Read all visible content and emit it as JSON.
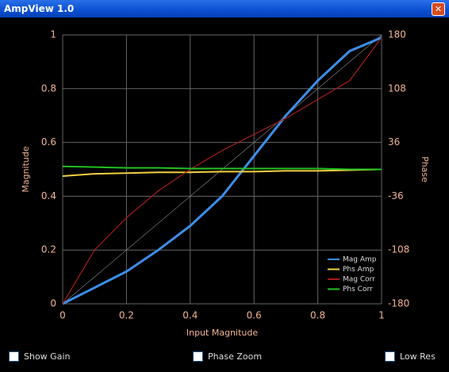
{
  "window": {
    "title": "AmpView 1.0"
  },
  "controls": [
    {
      "label": "Show Gain"
    },
    {
      "label": "Phase Zoom"
    },
    {
      "label": "Low Res"
    }
  ],
  "chart_data": {
    "type": "line",
    "x_label": "Input Magnitude",
    "y_label": "Magnitude",
    "y2_label": "Phase",
    "x": [
      0,
      0.1,
      0.2,
      0.3,
      0.4,
      0.5,
      0.6,
      0.7,
      0.8,
      0.9,
      1
    ],
    "series": [
      {
        "name": "Mag Amp",
        "color": "#3d8ee8",
        "values": [
          0,
          0.06,
          0.12,
          0.2,
          0.29,
          0.4,
          0.55,
          0.7,
          0.83,
          0.94,
          0.99
        ]
      },
      {
        "name": "Phs Amp",
        "color": "#f2d040",
        "axis": "y2",
        "values": [
          -9,
          -6,
          -5,
          -4,
          -4,
          -3,
          -3,
          -2,
          -2,
          -1,
          0
        ]
      },
      {
        "name": "Mag Corr",
        "color": "#a81c1c",
        "values": [
          0,
          0.2,
          0.32,
          0.42,
          0.5,
          0.57,
          0.63,
          0.69,
          0.76,
          0.83,
          0.99
        ]
      },
      {
        "name": "Phs Corr",
        "color": "#22c022",
        "axis": "y2",
        "values": [
          4,
          3,
          2,
          2,
          1,
          1,
          1,
          1,
          1,
          0,
          0
        ]
      }
    ],
    "xlim": [
      0,
      1
    ],
    "xticks": [
      0,
      0.2,
      0.4,
      0.6,
      0.8,
      1
    ],
    "ylim": [
      0,
      1
    ],
    "yticks": [
      0,
      0.2,
      0.4,
      0.6,
      0.8,
      1
    ],
    "y2lim": [
      -180,
      180
    ],
    "y2ticks": [
      -180,
      -108,
      -36,
      36,
      108,
      180
    ],
    "grid": true,
    "legend": "lower-right"
  }
}
